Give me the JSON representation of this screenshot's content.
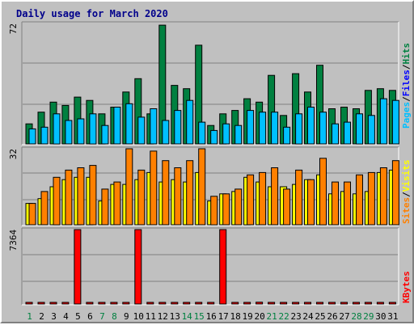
{
  "chart_data": [
    {
      "type": "bar",
      "title": "Daily usage for March 2020",
      "panel": "pages-files-hits",
      "ymax_label": "72",
      "ylim": [
        0,
        72
      ],
      "categories": [
        "1",
        "2",
        "3",
        "4",
        "5",
        "6",
        "7",
        "8",
        "9",
        "10",
        "11",
        "12",
        "13",
        "14",
        "15",
        "16",
        "17",
        "18",
        "19",
        "20",
        "21",
        "22",
        "23",
        "24",
        "25",
        "26",
        "27",
        "28",
        "29",
        "30",
        "31"
      ],
      "legend": [
        {
          "text": "Pages",
          "color": "#00bfff"
        },
        {
          "text": "/",
          "color": "#000000"
        },
        {
          "text": "Files",
          "color": "#0000ff"
        },
        {
          "text": "/",
          "color": "#000000"
        },
        {
          "text": "Hits",
          "color": "#008040"
        }
      ],
      "series": [
        {
          "name": "Hits",
          "color": "#008040",
          "values": [
            12,
            19,
            25,
            23,
            28,
            26,
            18,
            22,
            31,
            39,
            18,
            71,
            35,
            33,
            59,
            11,
            18,
            20,
            27,
            25,
            41,
            17,
            42,
            31,
            47,
            21,
            22,
            21,
            32,
            33,
            32
          ]
        },
        {
          "name": "Files",
          "color": "#00c0ff",
          "values": [
            9,
            10,
            18,
            14,
            15,
            18,
            11,
            22,
            24,
            16,
            21,
            14,
            20,
            26,
            13,
            8,
            12,
            11,
            20,
            19,
            19,
            10,
            18,
            22,
            19,
            12,
            13,
            18,
            17,
            27,
            26
          ]
        }
      ]
    },
    {
      "type": "bar",
      "panel": "sites-visits",
      "ymax_label": "32",
      "ylim": [
        0,
        32
      ],
      "categories": [
        "1",
        "2",
        "3",
        "4",
        "5",
        "6",
        "7",
        "8",
        "9",
        "10",
        "11",
        "12",
        "13",
        "14",
        "15",
        "16",
        "17",
        "18",
        "19",
        "20",
        "21",
        "22",
        "23",
        "24",
        "25",
        "26",
        "27",
        "28",
        "29",
        "30",
        "31"
      ],
      "legend": [
        {
          "text": "Sites",
          "color": "#ff8000"
        },
        {
          "text": "/",
          "color": "#000000"
        },
        {
          "text": "Visits",
          "color": "#ffff00"
        }
      ],
      "series": [
        {
          "name": "Visits",
          "color": "#ffff00",
          "values": [
            9,
            11,
            16,
            19,
            20,
            20,
            10,
            17,
            17,
            19,
            22,
            18,
            19,
            18,
            22,
            10,
            13,
            14,
            20,
            18,
            16,
            16,
            17,
            19,
            21,
            13,
            14,
            13,
            14,
            22,
            23
          ]
        },
        {
          "name": "Sites",
          "color": "#ff8000",
          "values": [
            9,
            14,
            20,
            23,
            24,
            25,
            15,
            18,
            32,
            23,
            31,
            27,
            24,
            27,
            32,
            12,
            13,
            15,
            21,
            22,
            24,
            15,
            23,
            19,
            28,
            18,
            18,
            21,
            22,
            24,
            27
          ]
        }
      ]
    },
    {
      "type": "bar",
      "panel": "kbytes",
      "ymax_label": "7364",
      "ylim": [
        0,
        7364
      ],
      "categories": [
        "1",
        "2",
        "3",
        "4",
        "5",
        "6",
        "7",
        "8",
        "9",
        "10",
        "11",
        "12",
        "13",
        "14",
        "15",
        "16",
        "17",
        "18",
        "19",
        "20",
        "21",
        "22",
        "23",
        "24",
        "25",
        "26",
        "27",
        "28",
        "29",
        "30",
        "31"
      ],
      "legend": [
        {
          "text": "KBytes",
          "color": "#ff0000"
        }
      ],
      "series": [
        {
          "name": "KBytes",
          "color": "#ff0000",
          "values": [
            30,
            30,
            30,
            30,
            7364,
            30,
            30,
            30,
            30,
            7364,
            30,
            30,
            30,
            30,
            30,
            30,
            7364,
            30,
            30,
            180,
            30,
            30,
            30,
            30,
            30,
            30,
            30,
            30,
            30,
            30,
            30
          ]
        }
      ]
    }
  ],
  "x_axis": {
    "labels": [
      "1",
      "2",
      "3",
      "4",
      "5",
      "6",
      "7",
      "8",
      "9",
      "10",
      "11",
      "12",
      "13",
      "14",
      "15",
      "16",
      "17",
      "18",
      "19",
      "20",
      "21",
      "22",
      "23",
      "24",
      "25",
      "26",
      "27",
      "28",
      "29",
      "30",
      "31"
    ],
    "weekend_days": [
      1,
      7,
      8,
      14,
      15,
      21,
      22,
      28,
      29
    ],
    "weekend_color": "#008040",
    "weekday_color": "#000000"
  }
}
